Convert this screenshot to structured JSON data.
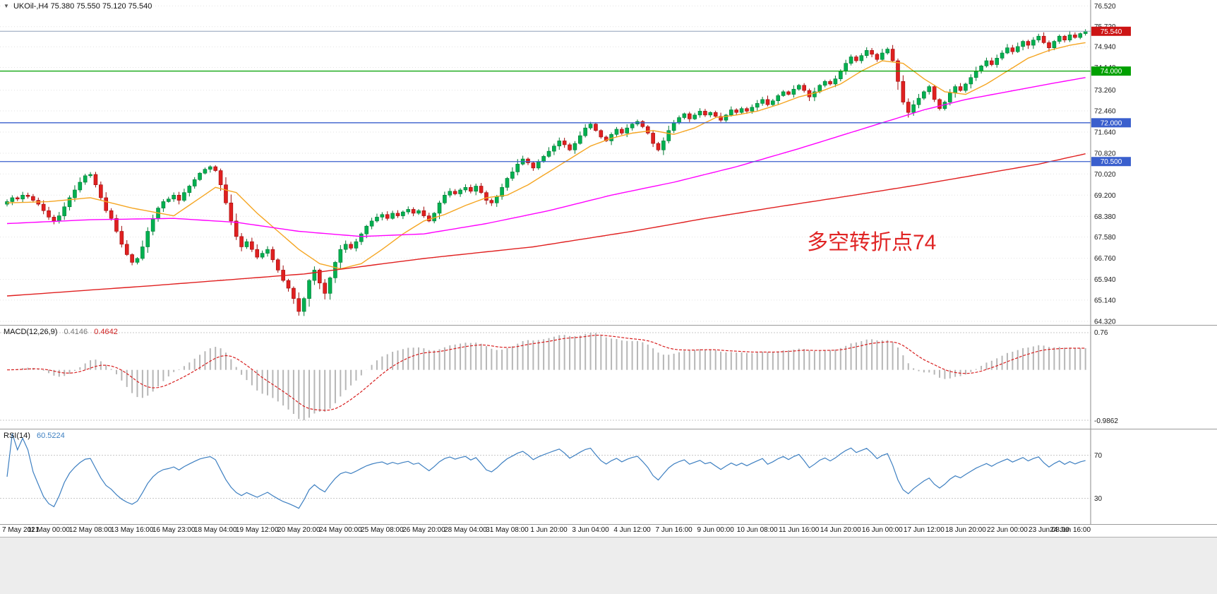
{
  "main_panel": {
    "dropdown_icon": "▼",
    "title_symbol": "UKOil-,H4",
    "title_ohlc": "75.380 75.550 75.120 75.540",
    "annotation": {
      "text": "多空转折点74",
      "color": "#e02525"
    },
    "current_price": "75.540"
  },
  "macd_panel": {
    "label": "MACD(12,26,9)",
    "value_main": "0.4146",
    "value_signal": "0.4642",
    "axis_top": "0.76",
    "axis_bottom": "-0.9862"
  },
  "rsi_panel": {
    "label": "RSI(14)",
    "value": "60.5224"
  },
  "colors": {
    "up_candle": "#00b050",
    "down_candle": "#e02020",
    "ma_fast": "#f5a623",
    "ma_mid": "#ff00ff",
    "ma_slow": "#e02020",
    "hline_green": "#00a000",
    "hline_blue": "#3a5fcd",
    "last_price_badge": "#cc1414",
    "macd_hist": "#b6b6b6",
    "macd_signal": "#d82020",
    "rsi_line": "#3d7fc1",
    "grid": "#e2e2e2",
    "axis_line": "#8a8a8a"
  },
  "chart_data": {
    "type": "candlestick",
    "symbol": "UKOil-",
    "timeframe": "H4",
    "title": "UKOil-,H4",
    "current": {
      "open": 75.38,
      "high": 75.55,
      "low": 75.12,
      "close": 75.54
    },
    "y_ticks": [
      76.52,
      75.72,
      74.94,
      74.14,
      73.26,
      72.46,
      71.64,
      70.82,
      70.02,
      69.2,
      68.38,
      67.58,
      66.76,
      65.94,
      65.14,
      64.32
    ],
    "y_range": [
      64.18,
      76.75
    ],
    "x_labels": [
      "7 May 2021",
      "11 May 00:00",
      "12 May 08:00",
      "13 May 16:00",
      "16 May 23:00",
      "18 May 04:00",
      "19 May 12:00",
      "20 May 20:00",
      "24 May 00:00",
      "25 May 08:00",
      "26 May 20:00",
      "28 May 04:00",
      "31 May 08:00",
      "1 Jun 20:00",
      "3 Jun 04:00",
      "4 Jun 12:00",
      "7 Jun 16:00",
      "9 Jun 00:00",
      "10 Jun 08:00",
      "11 Jun 16:00",
      "14 Jun 20:00",
      "16 Jun 00:00",
      "17 Jun 12:00",
      "18 Jun 20:00",
      "22 Jun 00:00",
      "23 Jun 08:00",
      "24 Jun 16:00"
    ],
    "bars_per_label": 8,
    "closes": [
      68.95,
      69.1,
      69.05,
      69.2,
      69.15,
      69.0,
      68.85,
      68.6,
      68.35,
      68.2,
      68.4,
      68.75,
      69.1,
      69.4,
      69.7,
      69.95,
      70.0,
      69.6,
      69.1,
      68.6,
      68.3,
      67.8,
      67.3,
      66.9,
      66.6,
      66.75,
      67.2,
      67.8,
      68.3,
      68.7,
      68.95,
      69.05,
      69.2,
      69.0,
      69.3,
      69.55,
      69.8,
      70.05,
      70.2,
      70.3,
      70.15,
      69.6,
      68.9,
      68.2,
      67.6,
      67.2,
      67.4,
      67.1,
      66.8,
      66.95,
      67.1,
      66.7,
      66.3,
      65.9,
      65.6,
      65.2,
      64.7,
      65.2,
      65.9,
      66.3,
      65.8,
      65.4,
      66.0,
      66.6,
      67.1,
      67.3,
      67.15,
      67.4,
      67.7,
      68.0,
      68.2,
      68.35,
      68.45,
      68.3,
      68.5,
      68.4,
      68.55,
      68.65,
      68.5,
      68.6,
      68.4,
      68.2,
      68.5,
      68.9,
      69.2,
      69.35,
      69.25,
      69.4,
      69.5,
      69.35,
      69.55,
      69.3,
      69.0,
      68.9,
      69.15,
      69.5,
      69.85,
      70.1,
      70.4,
      70.6,
      70.45,
      70.25,
      70.5,
      70.7,
      70.9,
      71.1,
      71.3,
      71.15,
      70.95,
      71.2,
      71.5,
      71.8,
      71.95,
      71.7,
      71.45,
      71.3,
      71.55,
      71.75,
      71.6,
      71.8,
      71.95,
      72.05,
      71.85,
      71.6,
      71.2,
      70.95,
      71.3,
      71.7,
      72.0,
      72.2,
      72.35,
      72.15,
      72.3,
      72.45,
      72.3,
      72.4,
      72.25,
      72.1,
      72.3,
      72.5,
      72.4,
      72.55,
      72.45,
      72.6,
      72.75,
      72.9,
      72.7,
      72.85,
      73.05,
      73.2,
      73.1,
      73.3,
      73.45,
      73.25,
      73.0,
      73.2,
      73.45,
      73.6,
      73.5,
      73.7,
      74.0,
      74.3,
      74.55,
      74.4,
      74.6,
      74.8,
      74.65,
      74.45,
      74.7,
      74.85,
      74.4,
      73.6,
      72.8,
      72.4,
      72.7,
      72.95,
      73.2,
      73.4,
      72.9,
      72.55,
      72.8,
      73.15,
      73.4,
      73.25,
      73.5,
      73.75,
      74.0,
      74.2,
      74.4,
      74.25,
      74.5,
      74.7,
      74.9,
      74.75,
      74.95,
      75.15,
      75.0,
      75.2,
      75.35,
      75.1,
      74.9,
      75.15,
      75.35,
      75.2,
      75.4,
      75.3,
      75.45,
      75.54
    ],
    "moving_averages": [
      {
        "name": "ma-fast",
        "color": "#f5a623",
        "anchors": [
          [
            0,
            68.9
          ],
          [
            8,
            68.95
          ],
          [
            16,
            69.1
          ],
          [
            24,
            68.7
          ],
          [
            32,
            68.4
          ],
          [
            40,
            69.5
          ],
          [
            44,
            69.3
          ],
          [
            48,
            68.5
          ],
          [
            52,
            67.8
          ],
          [
            56,
            67.1
          ],
          [
            60,
            66.55
          ],
          [
            64,
            66.35
          ],
          [
            68,
            66.55
          ],
          [
            72,
            67.1
          ],
          [
            76,
            67.7
          ],
          [
            80,
            68.2
          ],
          [
            84,
            68.45
          ],
          [
            88,
            68.8
          ],
          [
            92,
            69.1
          ],
          [
            96,
            69.2
          ],
          [
            100,
            69.6
          ],
          [
            104,
            70.1
          ],
          [
            108,
            70.6
          ],
          [
            112,
            71.1
          ],
          [
            116,
            71.4
          ],
          [
            120,
            71.6
          ],
          [
            124,
            71.7
          ],
          [
            128,
            71.55
          ],
          [
            132,
            71.8
          ],
          [
            136,
            72.2
          ],
          [
            140,
            72.3
          ],
          [
            144,
            72.45
          ],
          [
            148,
            72.7
          ],
          [
            152,
            73.0
          ],
          [
            156,
            73.2
          ],
          [
            160,
            73.5
          ],
          [
            164,
            74.0
          ],
          [
            168,
            74.4
          ],
          [
            172,
            74.3
          ],
          [
            176,
            73.7
          ],
          [
            180,
            73.2
          ],
          [
            184,
            73.1
          ],
          [
            188,
            73.5
          ],
          [
            192,
            74.0
          ],
          [
            196,
            74.5
          ],
          [
            200,
            74.8
          ],
          [
            204,
            75.0
          ],
          [
            207,
            75.1
          ]
        ]
      },
      {
        "name": "ma-mid",
        "color": "#ff00ff",
        "anchors": [
          [
            0,
            68.1
          ],
          [
            16,
            68.25
          ],
          [
            32,
            68.3
          ],
          [
            44,
            68.15
          ],
          [
            56,
            67.8
          ],
          [
            68,
            67.6
          ],
          [
            80,
            67.7
          ],
          [
            92,
            68.1
          ],
          [
            104,
            68.6
          ],
          [
            116,
            69.2
          ],
          [
            128,
            69.7
          ],
          [
            140,
            70.3
          ],
          [
            152,
            71.0
          ],
          [
            160,
            71.5
          ],
          [
            168,
            72.0
          ],
          [
            176,
            72.5
          ],
          [
            184,
            72.9
          ],
          [
            192,
            73.2
          ],
          [
            200,
            73.5
          ],
          [
            207,
            73.75
          ]
        ]
      },
      {
        "name": "ma-slow",
        "color": "#e02020",
        "anchors": [
          [
            0,
            65.3
          ],
          [
            28,
            65.7
          ],
          [
            57,
            66.15
          ],
          [
            80,
            66.75
          ],
          [
            101,
            67.2
          ],
          [
            120,
            67.8
          ],
          [
            134,
            68.3
          ],
          [
            148,
            68.75
          ],
          [
            161,
            69.15
          ],
          [
            175,
            69.6
          ],
          [
            188,
            70.05
          ],
          [
            198,
            70.4
          ],
          [
            207,
            70.8
          ]
        ]
      }
    ],
    "hlines": [
      {
        "price": 74.0,
        "label": "74.000",
        "color": "#00a000"
      },
      {
        "price": 72.0,
        "label": "72.000",
        "color": "#3a5fcd"
      },
      {
        "price": 70.5,
        "label": "70.500",
        "color": "#3a5fcd"
      }
    ],
    "last_price": {
      "value": 75.54,
      "label": "75.540",
      "color": "#cc1414"
    },
    "annotation": {
      "text": "多空转折点74",
      "color": "#e02525"
    },
    "indicators": {
      "macd": {
        "fast": 12,
        "slow": 26,
        "signal": 9,
        "current_main": 0.4146,
        "current_signal": 0.4642,
        "axis_max": 0.76,
        "axis_min": -0.9862
      },
      "rsi": {
        "period": 14,
        "current": 60.5224,
        "levels": [
          70,
          30
        ]
      }
    }
  }
}
